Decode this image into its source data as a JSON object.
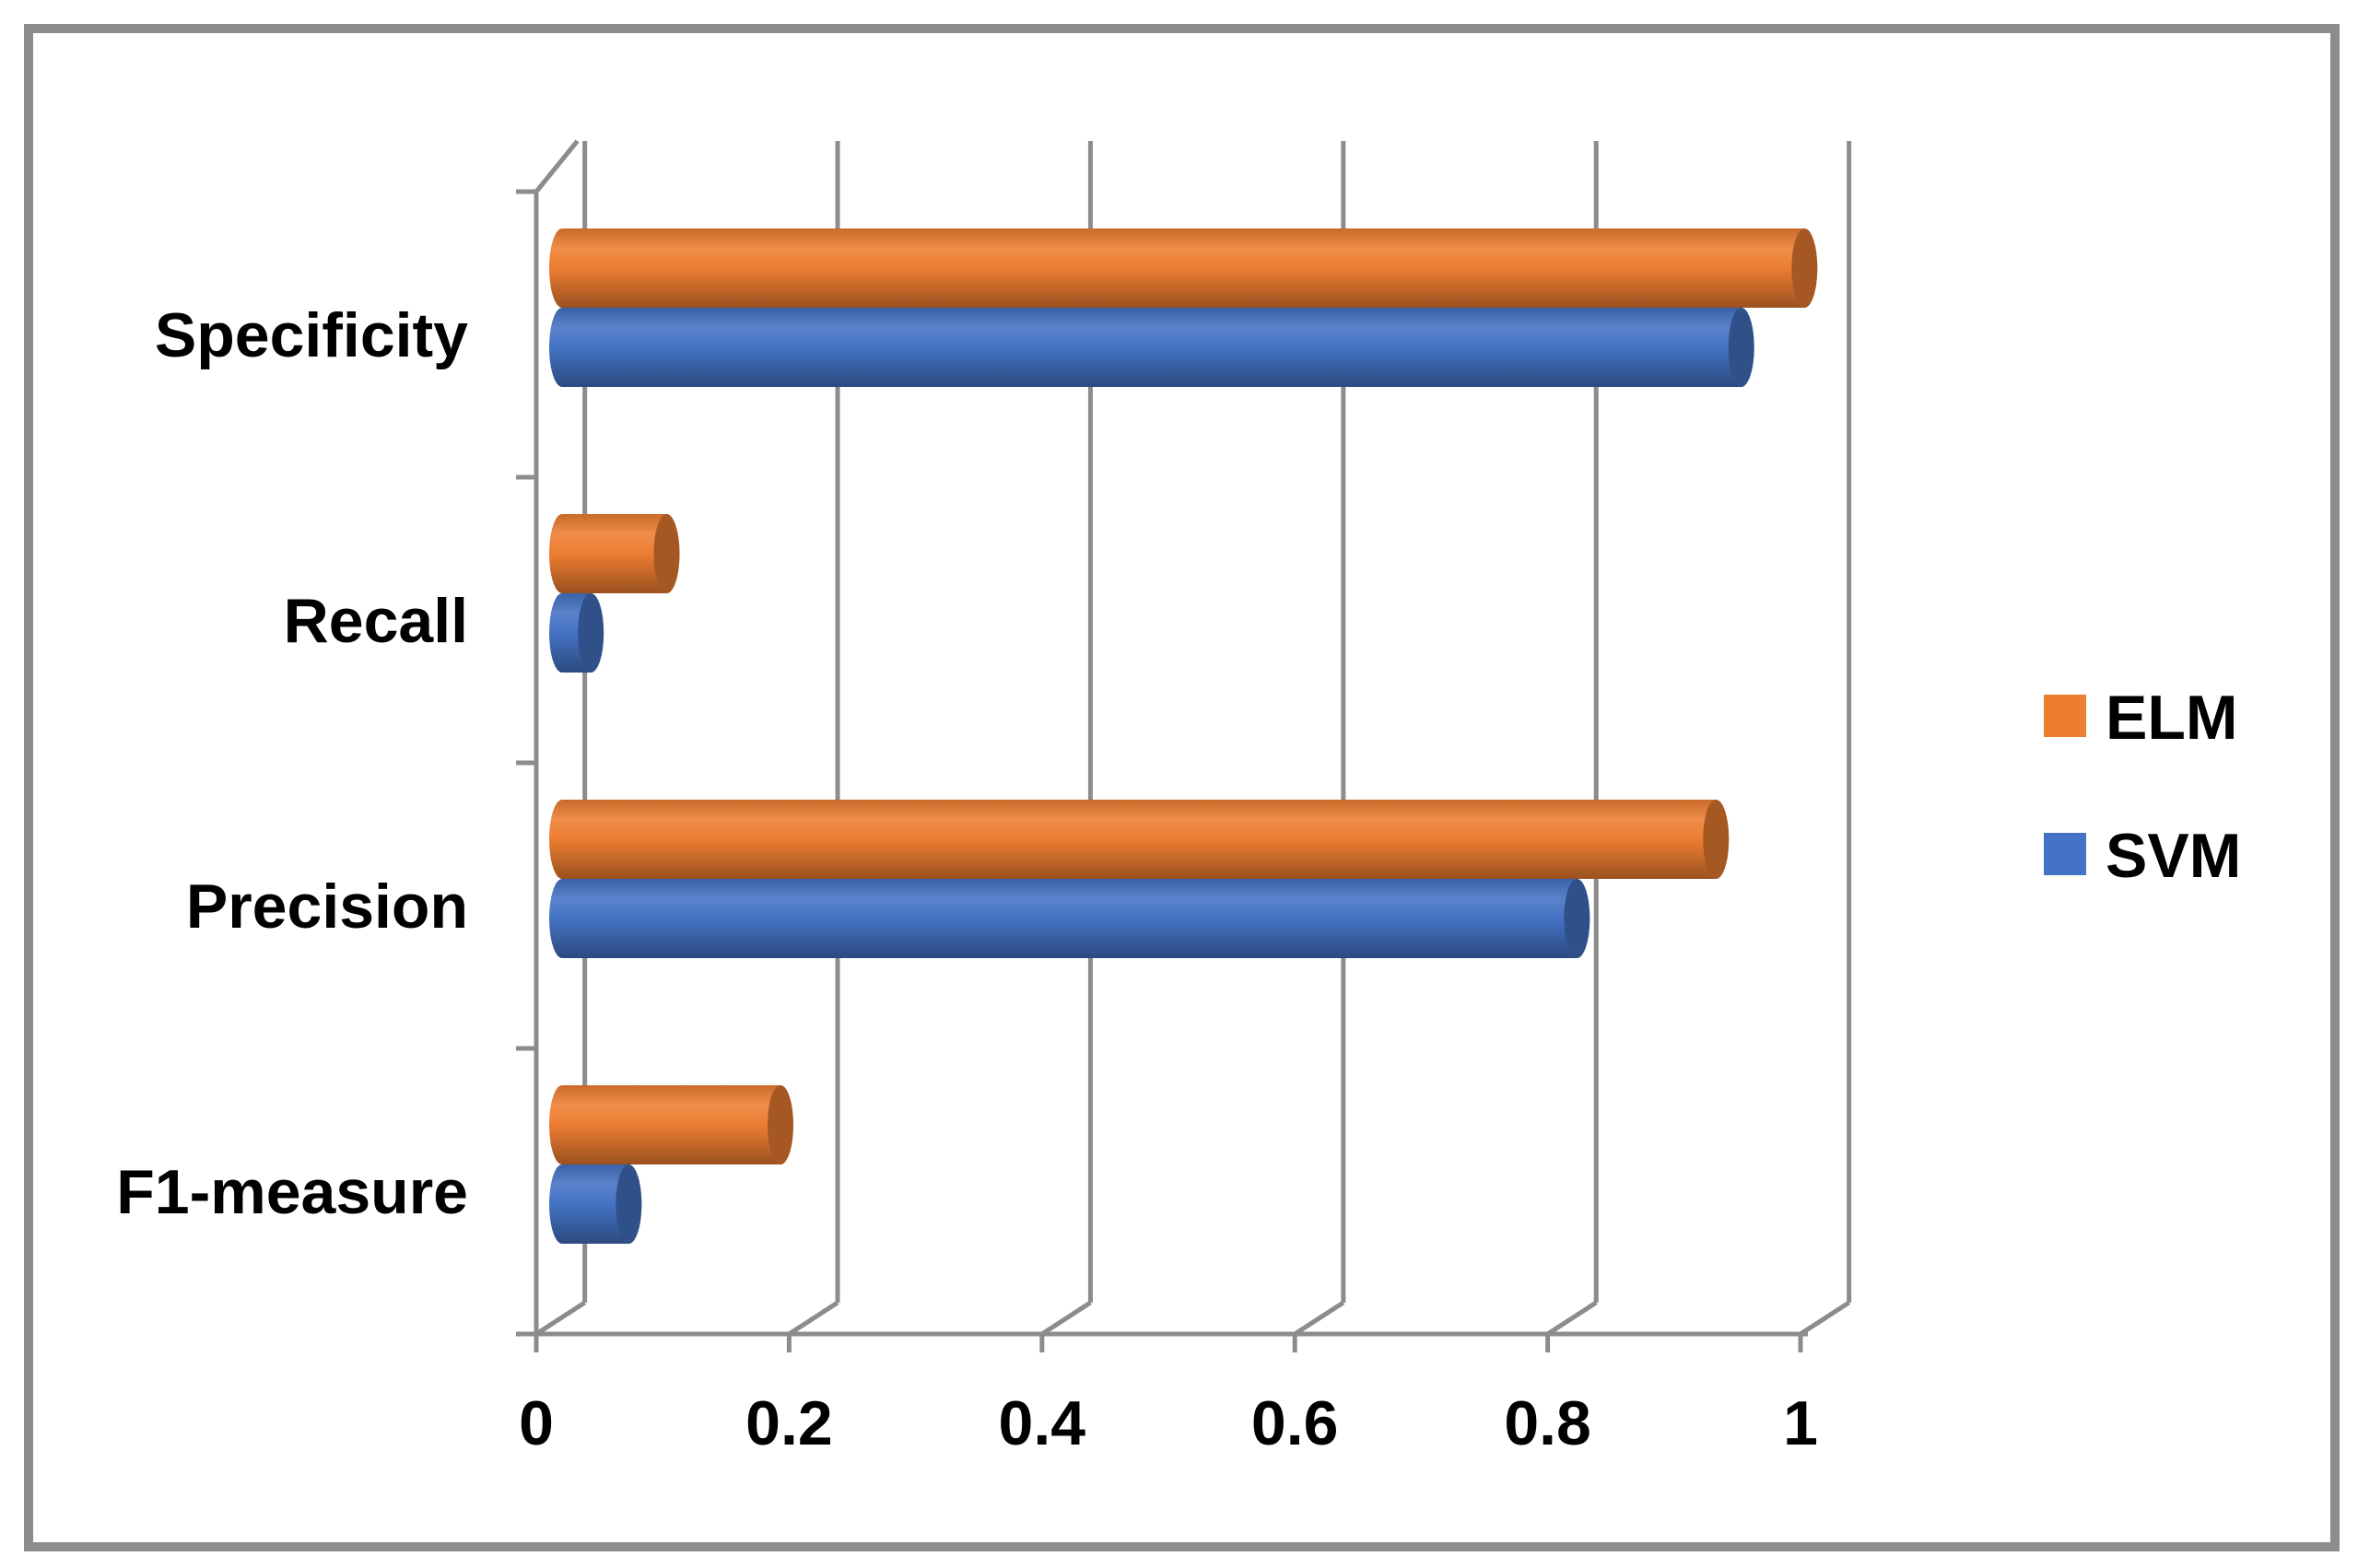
{
  "chart_data": {
    "type": "bar",
    "orientation": "horizontal",
    "style": "3d-cylinder",
    "title": "",
    "xlabel": "",
    "ylabel": "",
    "categories": [
      "Specificity",
      "Recall",
      "Precision",
      "F1-measure"
    ],
    "series": [
      {
        "name": "ELM",
        "color": "#ED7D31",
        "values": [
          0.99,
          0.09,
          0.92,
          0.18
        ]
      },
      {
        "name": "SVM",
        "color": "#4472C4",
        "values": [
          0.94,
          0.03,
          0.81,
          0.06
        ]
      }
    ],
    "xlim": [
      0,
      1
    ],
    "xticks": [
      0,
      0.2,
      0.4,
      0.6,
      0.8,
      1
    ],
    "xtick_labels": [
      "0",
      "0.2",
      "0.4",
      "0.6",
      "0.8",
      "1"
    ],
    "grid": true,
    "legend": {
      "position": "right",
      "entries": [
        "ELM",
        "SVM"
      ]
    }
  }
}
